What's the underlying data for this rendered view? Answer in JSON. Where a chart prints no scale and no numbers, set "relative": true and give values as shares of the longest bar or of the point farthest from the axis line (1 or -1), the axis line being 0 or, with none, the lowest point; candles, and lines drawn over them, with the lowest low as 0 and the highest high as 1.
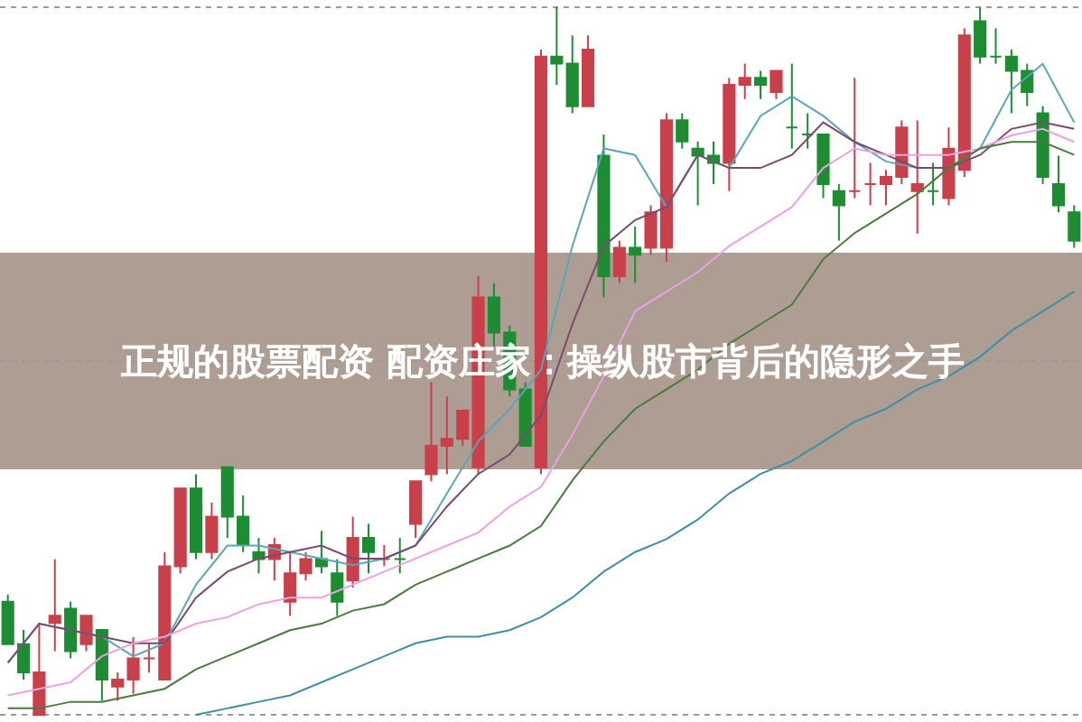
{
  "chart_data": [
    {
      "type": "candlestick",
      "title": "正规的股票配资 配资庄家：操纵股市背后的隐形之手",
      "relative": true,
      "grid": "y",
      "categories": [
        null,
        null,
        null,
        null,
        null,
        null,
        null,
        null,
        null,
        null,
        null,
        null,
        null,
        null,
        null,
        null,
        null,
        null,
        null,
        null,
        null,
        null,
        null,
        null,
        null,
        null,
        null,
        null,
        null,
        null,
        null,
        null,
        null,
        null,
        null,
        null,
        null,
        null,
        null,
        null,
        null,
        null,
        null,
        null,
        null,
        null,
        null,
        null,
        null,
        null,
        null,
        null,
        null,
        null,
        null,
        null,
        null,
        null,
        null,
        null,
        null,
        null,
        null,
        null,
        null,
        null,
        null,
        null,
        null
      ],
      "ohlc": [
        [
          0.16,
          0.17,
          0.1,
          0.1
        ],
        [
          0.1,
          0.12,
          0.05,
          0.06
        ],
        [
          0.0,
          0.13,
          0.0,
          0.06
        ],
        [
          0.13,
          0.22,
          0.09,
          0.14
        ],
        [
          0.15,
          0.16,
          0.08,
          0.09
        ],
        [
          0.1,
          0.14,
          0.09,
          0.14
        ],
        [
          0.12,
          0.12,
          0.02,
          0.05
        ],
        [
          0.04,
          0.06,
          0.02,
          0.05
        ],
        [
          0.05,
          0.11,
          0.03,
          0.08
        ],
        [
          0.08,
          0.1,
          0.06,
          0.08
        ],
        [
          0.05,
          0.23,
          0.05,
          0.21
        ],
        [
          0.21,
          0.32,
          0.2,
          0.32
        ],
        [
          0.32,
          0.34,
          0.22,
          0.23
        ],
        [
          0.23,
          0.3,
          0.22,
          0.28
        ],
        [
          0.35,
          0.35,
          0.25,
          0.28
        ],
        [
          0.28,
          0.31,
          0.23,
          0.24
        ],
        [
          0.23,
          0.25,
          0.2,
          0.22
        ],
        [
          0.22,
          0.25,
          0.19,
          0.24
        ],
        [
          0.16,
          0.23,
          0.14,
          0.2
        ],
        [
          0.2,
          0.23,
          0.19,
          0.22
        ],
        [
          0.22,
          0.26,
          0.2,
          0.21
        ],
        [
          0.2,
          0.22,
          0.14,
          0.16
        ],
        [
          0.19,
          0.28,
          0.18,
          0.25
        ],
        [
          0.25,
          0.27,
          0.2,
          0.23
        ],
        [
          0.22,
          0.24,
          0.21,
          0.22
        ],
        [
          0.22,
          0.25,
          0.2,
          0.22
        ],
        [
          0.27,
          0.33,
          0.25,
          0.33
        ],
        [
          0.34,
          0.47,
          0.33,
          0.38
        ],
        [
          0.38,
          0.45,
          0.34,
          0.39
        ],
        [
          0.39,
          0.43,
          0.38,
          0.43
        ],
        [
          0.35,
          0.62,
          0.34,
          0.59
        ],
        [
          0.59,
          0.61,
          0.52,
          0.54
        ],
        [
          0.54,
          0.55,
          0.45,
          0.46
        ],
        [
          0.46,
          0.47,
          0.38,
          0.38
        ],
        [
          0.35,
          0.94,
          0.34,
          0.93
        ],
        [
          0.93,
          1.0,
          0.89,
          0.92
        ],
        [
          0.92,
          0.96,
          0.85,
          0.86
        ],
        [
          0.86,
          0.96,
          0.86,
          0.94
        ],
        [
          0.79,
          0.82,
          0.59,
          0.62
        ],
        [
          0.62,
          0.67,
          0.61,
          0.66
        ],
        [
          0.66,
          0.69,
          0.61,
          0.65
        ],
        [
          0.66,
          0.72,
          0.65,
          0.71
        ],
        [
          0.66,
          0.85,
          0.64,
          0.84
        ],
        [
          0.84,
          0.85,
          0.8,
          0.81
        ],
        [
          0.8,
          0.81,
          0.72,
          0.79
        ],
        [
          0.79,
          0.81,
          0.75,
          0.78
        ],
        [
          0.78,
          0.9,
          0.74,
          0.89
        ],
        [
          0.89,
          0.92,
          0.87,
          0.9
        ],
        [
          0.9,
          0.91,
          0.87,
          0.89
        ],
        [
          0.88,
          0.91,
          0.87,
          0.91
        ],
        [
          0.83,
          0.92,
          0.8,
          0.83
        ],
        [
          0.82,
          0.85,
          0.8,
          0.82
        ],
        [
          0.82,
          0.82,
          0.73,
          0.75
        ],
        [
          0.74,
          0.75,
          0.67,
          0.72
        ],
        [
          0.74,
          0.9,
          0.73,
          0.74
        ],
        [
          0.75,
          0.78,
          0.72,
          0.75
        ],
        [
          0.75,
          0.77,
          0.72,
          0.76
        ],
        [
          0.76,
          0.84,
          0.75,
          0.83
        ],
        [
          0.74,
          0.84,
          0.68,
          0.75
        ],
        [
          0.74,
          0.78,
          0.72,
          0.74
        ],
        [
          0.73,
          0.83,
          0.72,
          0.8
        ],
        [
          0.77,
          0.97,
          0.76,
          0.96
        ],
        [
          0.98,
          1.0,
          0.92,
          0.93
        ],
        [
          0.93,
          0.97,
          0.92,
          0.93
        ],
        [
          0.93,
          0.94,
          0.85,
          0.91
        ],
        [
          0.91,
          0.92,
          0.86,
          0.88
        ],
        [
          0.85,
          0.86,
          0.75,
          0.76
        ],
        [
          0.75,
          0.79,
          0.71,
          0.72
        ],
        [
          0.71,
          0.72,
          0.66,
          0.67
        ]
      ],
      "colors": [
        "#1e8c32",
        "#1e8c32",
        "#c8404a",
        "#c8404a",
        "#1e8c32",
        "#c8404a",
        "#1e8c32",
        "#c8404a",
        "#c8404a",
        "#c8404a",
        "#c8404a",
        "#c8404a",
        "#1e8c32",
        "#c8404a",
        "#1e8c32",
        "#1e8c32",
        "#1e8c32",
        "#c8404a",
        "#c8404a",
        "#c8404a",
        "#1e8c32",
        "#1e8c32",
        "#c8404a",
        "#1e8c32",
        "#c8404a",
        "#1e8c32",
        "#c8404a",
        "#c8404a",
        "#c8404a",
        "#c8404a",
        "#c8404a",
        "#1e8c32",
        "#1e8c32",
        "#1e8c32",
        "#c8404a",
        "#1e8c32",
        "#1e8c32",
        "#c8404a",
        "#1e8c32",
        "#c8404a",
        "#1e8c32",
        "#c8404a",
        "#c8404a",
        "#1e8c32",
        "#1e8c32",
        "#1e8c32",
        "#c8404a",
        "#c8404a",
        "#1e8c32",
        "#c8404a",
        "#1e8c32",
        "#1e8c32",
        "#1e8c32",
        "#1e8c32",
        "#c8404a",
        "#c8404a",
        "#c8404a",
        "#c8404a",
        "#c8404a",
        "#1e8c32",
        "#c8404a",
        "#c8404a",
        "#1e8c32",
        "#1e8c32",
        "#1e8c32",
        "#1e8c32",
        "#1e8c32",
        "#1e8c32",
        "#1e8c32"
      ]
    },
    {
      "type": "line",
      "relative": true,
      "categories": [
        null,
        null,
        null,
        null,
        null,
        null,
        null,
        null,
        null,
        null,
        null,
        null,
        null,
        null,
        null,
        null,
        null,
        null,
        null,
        null,
        null,
        null,
        null,
        null,
        null,
        null,
        null,
        null,
        null,
        null,
        null,
        null,
        null,
        null,
        null
      ],
      "series": [
        {
          "color": "#5aa6b8",
          "values": [
            0.08,
            0.14,
            0.13,
            0.12,
            0.09,
            0.11,
            0.2,
            0.26,
            0.26,
            0.25,
            0.24,
            0.23,
            0.24,
            0.26,
            0.34,
            0.42,
            0.47,
            0.53,
            0.72,
            0.87,
            0.86,
            0.78,
            0.86,
            0.84,
            0.92,
            0.95,
            0.92,
            0.88,
            0.85,
            0.84,
            0.84,
            0.87,
            0.96,
            1.0,
            0.91
          ]
        },
        {
          "color": "#7a4a6e",
          "values": [
            0.08,
            0.14,
            0.13,
            0.12,
            0.11,
            0.11,
            0.18,
            0.22,
            0.24,
            0.25,
            0.26,
            0.24,
            0.24,
            0.26,
            0.32,
            0.37,
            0.4,
            0.46,
            0.6,
            0.72,
            0.76,
            0.78,
            0.86,
            0.84,
            0.84,
            0.86,
            0.91,
            0.88,
            0.86,
            0.84,
            0.84,
            0.86,
            0.9,
            0.91,
            0.9
          ]
        },
        {
          "color": "#e9a2e2",
          "values": [
            0.03,
            0.04,
            0.05,
            0.09,
            0.11,
            0.12,
            0.14,
            0.15,
            0.17,
            0.18,
            0.18,
            0.2,
            0.22,
            0.24,
            0.26,
            0.28,
            0.32,
            0.35,
            0.43,
            0.52,
            0.62,
            0.65,
            0.68,
            0.72,
            0.75,
            0.78,
            0.84,
            0.87,
            0.86,
            0.86,
            0.86,
            0.87,
            0.89,
            0.9,
            0.88
          ]
        },
        {
          "color": "#4b7a3c",
          "values": [
            0.01,
            0.01,
            0.02,
            0.02,
            0.03,
            0.04,
            0.07,
            0.09,
            0.11,
            0.13,
            0.14,
            0.16,
            0.17,
            0.2,
            0.22,
            0.24,
            0.26,
            0.29,
            0.36,
            0.42,
            0.47,
            0.5,
            0.53,
            0.57,
            0.6,
            0.63,
            0.7,
            0.74,
            0.77,
            0.8,
            0.84,
            0.87,
            0.88,
            0.88,
            0.86
          ]
        },
        {
          "color": "#3d8fa8",
          "values": [
            null,
            null,
            null,
            null,
            null,
            null,
            0.0,
            0.01,
            0.02,
            0.03,
            0.05,
            0.07,
            0.09,
            0.11,
            0.12,
            0.12,
            0.13,
            0.15,
            0.18,
            0.22,
            0.25,
            0.27,
            0.3,
            0.34,
            0.37,
            0.39,
            0.42,
            0.45,
            0.47,
            0.5,
            0.52,
            0.55,
            0.59,
            0.62,
            0.65
          ]
        }
      ]
    }
  ]
}
